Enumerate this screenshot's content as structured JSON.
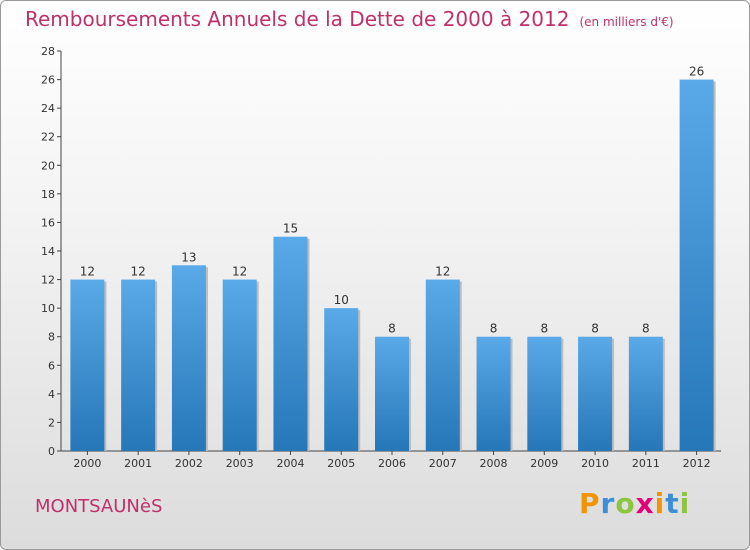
{
  "header": {
    "title": "Remboursements Annuels de la Dette de 2000 à 2012",
    "unit": "(en milliers d'€)"
  },
  "footer": {
    "commune": "MONTSAUNèS",
    "logo_letters": [
      "P",
      "r",
      "o",
      "x",
      "i",
      "t",
      "i"
    ],
    "logo_colors": [
      "#f29400",
      "#3c8fd6",
      "#8cc63f",
      "#e3007a",
      "#f29400",
      "#3c8fd6",
      "#8cc63f"
    ]
  },
  "colors": {
    "bar_top": "#5aa9e8",
    "bar_bottom": "#2677b8",
    "text": "#333333",
    "title": "#c0306a"
  },
  "chart_data": {
    "type": "bar",
    "title": "Remboursements Annuels de la Dette de 2000 à 2012",
    "categories": [
      "2000",
      "2001",
      "2002",
      "2003",
      "2004",
      "2005",
      "2006",
      "2007",
      "2008",
      "2009",
      "2010",
      "2011",
      "2012"
    ],
    "values": [
      12,
      12,
      13,
      12,
      15,
      10,
      8,
      12,
      8,
      8,
      8,
      8,
      26
    ],
    "ylim": [
      0,
      28
    ],
    "yticks": [
      0,
      2,
      4,
      6,
      8,
      10,
      12,
      14,
      16,
      18,
      20,
      22,
      24,
      26,
      28
    ],
    "grid": false,
    "legend": "none"
  }
}
